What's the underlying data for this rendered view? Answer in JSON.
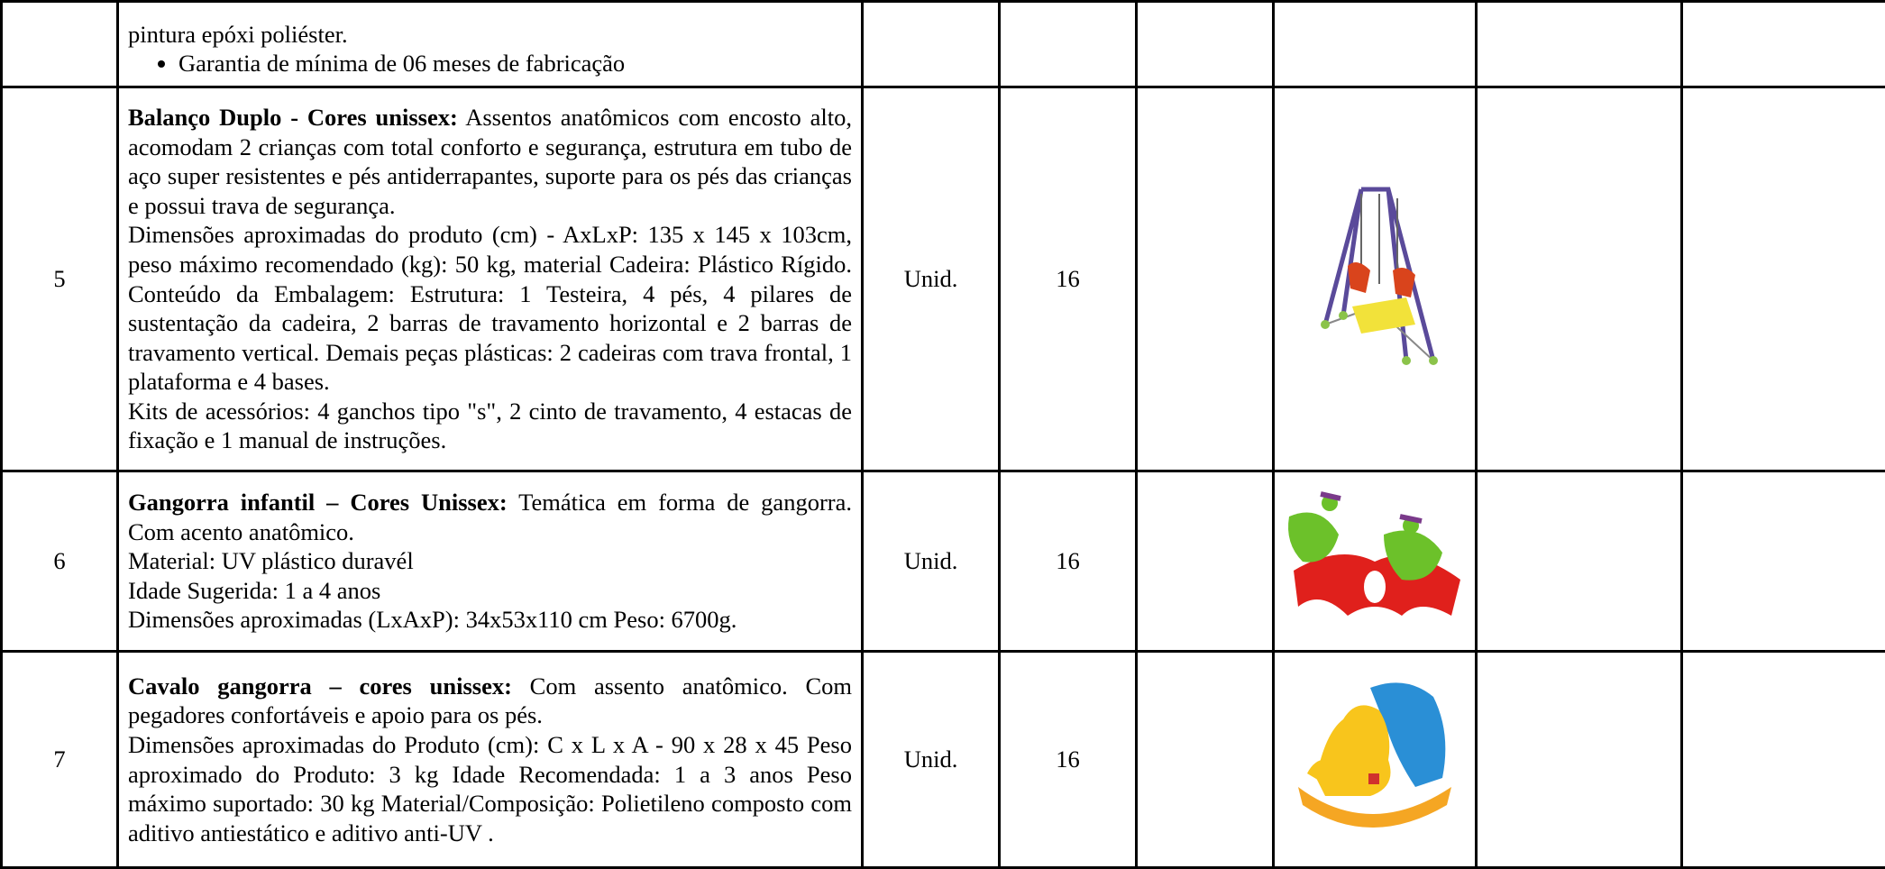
{
  "table": {
    "rows": [
      {
        "paragraphs": [
          "pintura epóxi poliéster."
        ],
        "bullets": [
          "Garantia de mínima de 06 meses de fabricação"
        ]
      },
      {
        "number": 5,
        "title": "Balanço Duplo - Cores unissex:",
        "intro": "Assentos anatômicos com encosto alto, acomodam 2 crianças com total conforto e segurança, estrutura em tubo de aço super resistentes e pés antiderrapantes, suporte para os pés das crianças e possui trava de segurança.",
        "paragraphs": [
          "Dimensões aproximadas do produto (cm) - AxLxP: 135 x 145 x 103cm, peso máximo recomendado (kg): 50 kg, material Cadeira: Plástico Rígido. Conteúdo da Embalagem: Estrutura: 1 Testeira, 4 pés, 4 pilares de sustentação da cadeira, 2 barras de travamento horizontal e 2 barras de travamento vertical. Demais peças plásticas: 2 cadeiras com trava frontal, 1 plataforma e 4 bases.",
          "Kits de acessórios: 4 ganchos tipo \"s\", 2 cinto de travamento, 4 estacas de fixação e 1 manual de instruções."
        ],
        "unit": "Unid.",
        "quantity": 16
      },
      {
        "number": 6,
        "title": "Gangorra infantil – Cores Unissex:",
        "intro": "Temática em forma de gangorra. Com acento anatômico.",
        "paragraphs": [
          "Material: UV plástico duravél",
          "Idade Sugerida: 1 a 4 anos",
          "Dimensões aproximadas (LxAxP): 34x53x110 cm Peso: 6700g."
        ],
        "unit": "Unid.",
        "quantity": 16
      },
      {
        "number": 7,
        "title": "Cavalo gangorra – cores unissex:",
        "intro": "Com assento anatômico. Com pegadores confortáveis e apoio para os pés.",
        "paragraphs": [
          "Dimensões aproximadas do Produto (cm): C x L x A - 90 x 28 x 45 Peso aproximado do Produto: 3 kg Idade Recomendada: 1 a 3 anos Peso máximo suportado: 30 kg Material/Composição: Polietileno composto com aditivo antiestático e aditivo anti-UV ."
        ],
        "unit": "Unid.",
        "quantity": 16
      }
    ]
  }
}
